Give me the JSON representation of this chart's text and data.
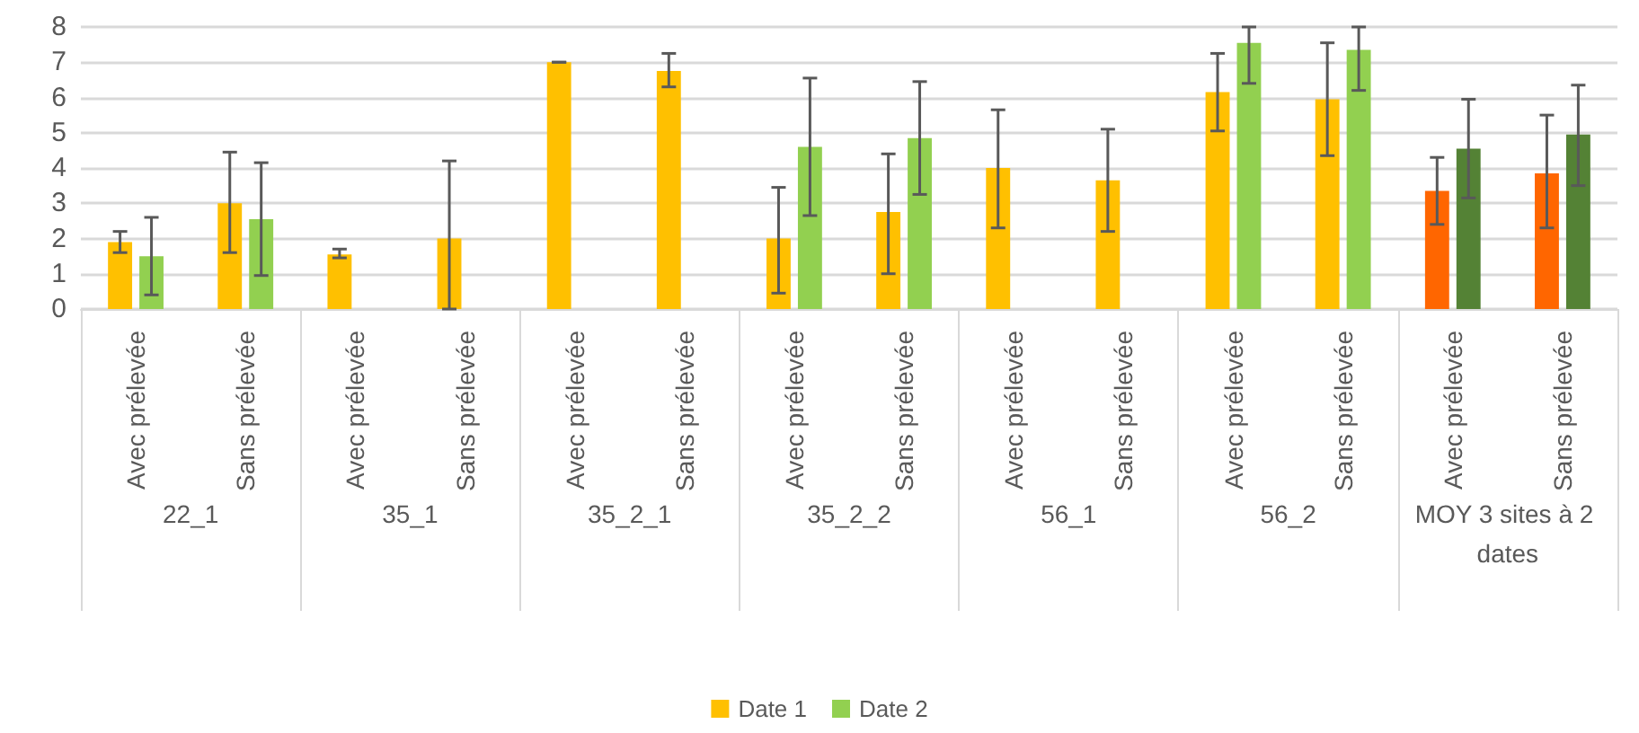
{
  "chart_data": {
    "type": "bar",
    "categories": [
      "Avec prélevée",
      "Sans prélevée",
      "Avec prélevée",
      "Sans prélevée",
      "Avec prélevée",
      "Sans prélevée",
      "Avec prélevée",
      "Sans prélevée",
      "Avec prélevée",
      "Sans prélevée",
      "Avec prélevée",
      "Sans prélevée",
      "Avec prélevée",
      "Sans prélevée"
    ],
    "annotations": [
      "22_1",
      "35_1",
      "35_2_1",
      "35_2_2",
      "56_1",
      "56_2",
      "MOY 3 sites à 2 dates"
    ],
    "series": [
      {
        "name": "Date 1",
        "color": "#ffc000",
        "colors": [
          "#ffc000",
          "#ffc000",
          "#ffc000",
          "#ffc000",
          "#ffc000",
          "#ffc000",
          "#ffc000",
          "#ffc000",
          "#ffc000",
          "#ffc000",
          "#ffc000",
          "#ffc000",
          "#ff6600",
          "#ff6600"
        ],
        "values": [
          1.9,
          3.0,
          1.55,
          2.0,
          7.0,
          6.75,
          2.0,
          2.75,
          4.0,
          3.65,
          6.15,
          5.95,
          3.35,
          3.85
        ],
        "errors": [
          [
            1.6,
            2.2
          ],
          [
            1.6,
            4.45
          ],
          [
            1.45,
            1.7
          ],
          [
            0,
            4.2
          ],
          [
            7.0,
            7.0
          ],
          [
            6.3,
            7.25
          ],
          [
            0.45,
            3.45
          ],
          [
            1.0,
            4.4
          ],
          [
            2.3,
            5.65
          ],
          [
            2.2,
            5.1
          ],
          [
            5.05,
            7.25
          ],
          [
            4.35,
            7.55
          ],
          [
            2.4,
            4.3
          ],
          [
            2.3,
            5.5
          ]
        ]
      },
      {
        "name": "Date 2",
        "color": "#92d050",
        "colors": [
          "#92d050",
          "#92d050",
          "#92d050",
          "#92d050",
          "#92d050",
          "#92d050",
          "#92d050",
          "#92d050",
          "#92d050",
          "#92d050",
          "#92d050",
          "#92d050",
          "#548235",
          "#548235"
        ],
        "values": [
          1.5,
          2.55,
          null,
          null,
          null,
          null,
          4.6,
          4.85,
          null,
          null,
          7.55,
          7.35,
          4.55,
          4.95
        ],
        "errors": [
          [
            0.4,
            2.6
          ],
          [
            0.95,
            4.15
          ],
          null,
          null,
          null,
          null,
          [
            2.65,
            6.55
          ],
          [
            3.25,
            6.45
          ],
          null,
          null,
          [
            6.4,
            8.0
          ],
          [
            6.2,
            8.0
          ],
          [
            3.15,
            5.95
          ],
          [
            3.5,
            6.35
          ]
        ]
      }
    ],
    "ylim": [
      0,
      8
    ],
    "yticks": [
      0,
      1,
      2,
      3,
      4,
      5,
      6,
      7,
      8
    ],
    "grid": "y",
    "legend": "bottom"
  }
}
